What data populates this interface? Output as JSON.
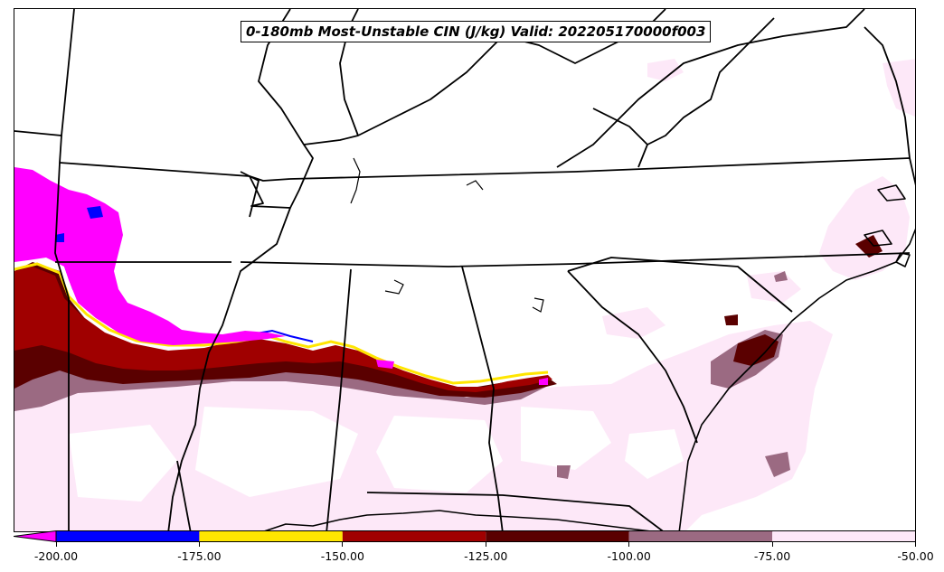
{
  "title": "0-180mb Most-Unstable CIN (J/kg) Valid: 202205170000f003",
  "colorbar": {
    "ticks": [
      "-200.00",
      "-175.00",
      "-150.00",
      "-125.00",
      "-100.00",
      "-75.00",
      "-50.00"
    ],
    "tick_values": [
      -200,
      -175,
      -150,
      -125,
      -100,
      -75,
      -50
    ],
    "range": [
      -200,
      -50
    ],
    "extend": "min",
    "bins": [
      {
        "from": -225,
        "to": -200,
        "color": "#ff00ff"
      },
      {
        "from": -200,
        "to": -175,
        "color": "#0000ff"
      },
      {
        "from": -175,
        "to": -150,
        "color": "#ffe600"
      },
      {
        "from": -150,
        "to": -125,
        "color": "#a00000"
      },
      {
        "from": -125,
        "to": -100,
        "color": "#5a0000"
      },
      {
        "from": -100,
        "to": -75,
        "color": "#9b6a82"
      },
      {
        "from": -75,
        "to": -50,
        "color": "#fde8f8"
      }
    ]
  },
  "map": {
    "projection_region": "Southeastern United States",
    "boundaries": "state borders and coastlines, black"
  }
}
